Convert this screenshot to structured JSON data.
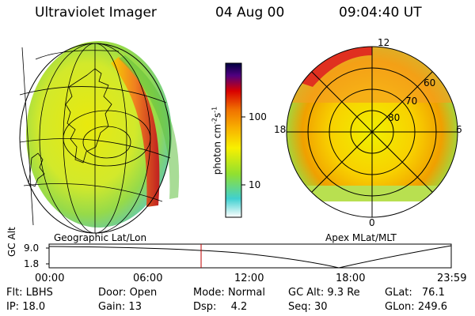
{
  "header": {
    "instrument": "Ultraviolet Imager",
    "date": "04 Aug 00",
    "time": "09:04:40 UT"
  },
  "colors": {
    "scale": [
      "#ffffff",
      "#40d0d0",
      "#90e030",
      "#f8f000",
      "#f8b000",
      "#f07000",
      "#d80000",
      "#500080",
      "#000040"
    ]
  },
  "left_panel": {
    "label": "Geographic Lat/Lon"
  },
  "right_panel": {
    "label": "Apex MLat/MLT",
    "lat_labels": [
      "60",
      "70",
      "80"
    ],
    "mlt_labels": {
      "top": "12",
      "left": "18",
      "right": "6",
      "bottom": "0"
    }
  },
  "colorbar": {
    "unit_label": "photon cm",
    "unit_sup1": "-2",
    "unit_mid": "s",
    "unit_sup2": "-1",
    "tick_high": "100",
    "tick_low": "10"
  },
  "timeline": {
    "ylabel": "GC Alt",
    "y_ticks": [
      "9.0",
      "1.8"
    ],
    "x_ticks": [
      "00:00",
      "06:00",
      "12:00",
      "18:00",
      "23:59"
    ],
    "current_time_fraction": 0.378
  },
  "info": {
    "flt_label": "Flt:",
    "flt_value": "LBHS",
    "ip_label": "IP:",
    "ip_value": "18.0",
    "door_label": "Door:",
    "door_value": "Open",
    "gain_label": "Gain:",
    "gain_value": "13",
    "mode_label": "Mode:",
    "mode_value": "Normal",
    "dsp_label": "Dsp:",
    "dsp_value": "4.2",
    "gcalt_label": "GC Alt:",
    "gcalt_value": "9.3 Re",
    "seq_label": "Seq:",
    "seq_value": "30",
    "glat_label": "GLat:",
    "glat_value": "76.1",
    "glon_label": "GLon:",
    "glon_value": "249.6"
  }
}
